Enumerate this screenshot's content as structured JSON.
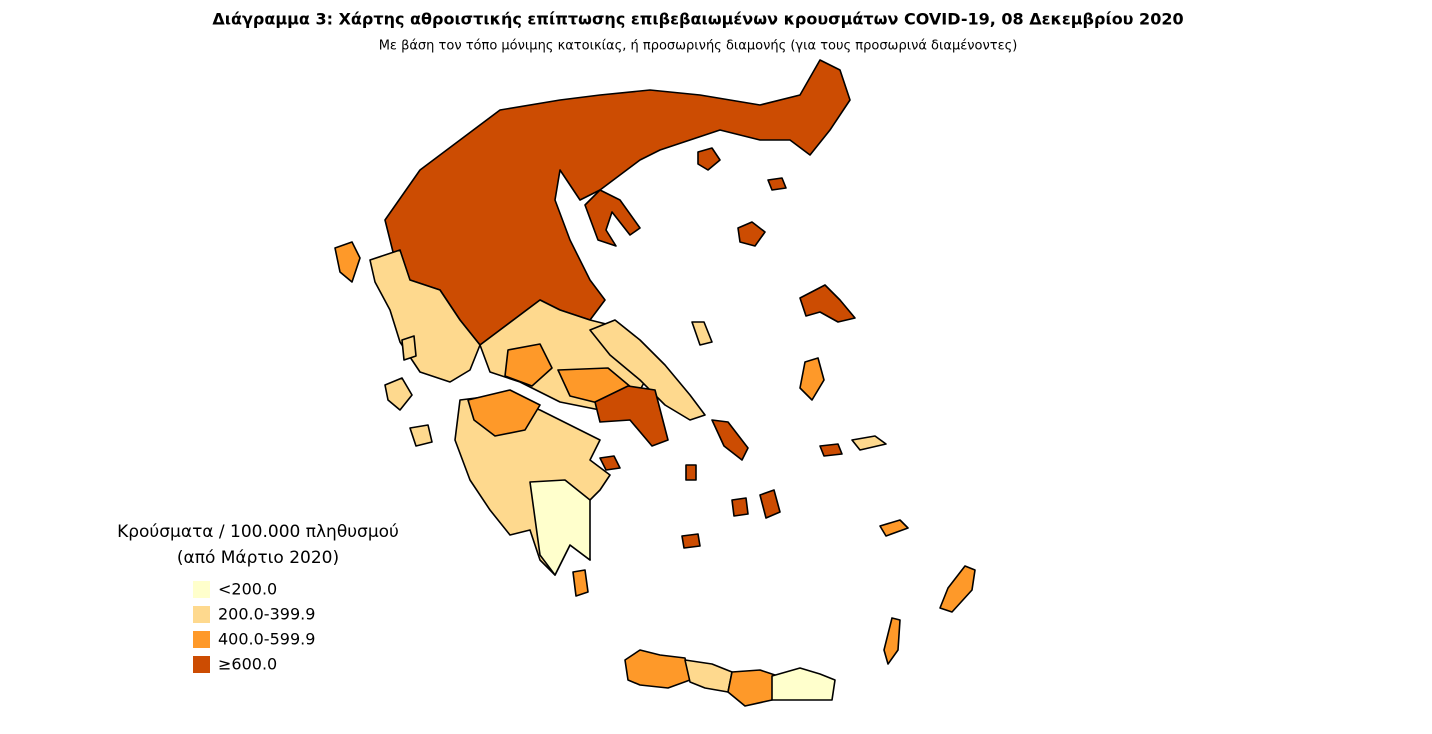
{
  "title": "Διάγραμμα 3: Χάρτης αθροιστικής επίπτωσης επιβεβαιωμένων κρουσμάτων COVID-19, 08 Δεκεμβρίου 2020",
  "subtitle": "Με βάση τον τόπο μόνιμης κατοικίας, ή προσωρινής διαμονής (για τους προσωρινά διαμένοντες)",
  "legend": {
    "title": [
      "Κρούσματα / 100.000 πληθυσμού",
      "(από Μάρτιο 2020)"
    ],
    "items": [
      {
        "label": "<200.0",
        "color": "#ffffcc"
      },
      {
        "label": "200.0-399.9",
        "color": "#fed98e"
      },
      {
        "label": "400.0-599.9",
        "color": "#fe9929"
      },
      {
        "label": "≥600.0",
        "color": "#cc4c02"
      }
    ]
  }
}
